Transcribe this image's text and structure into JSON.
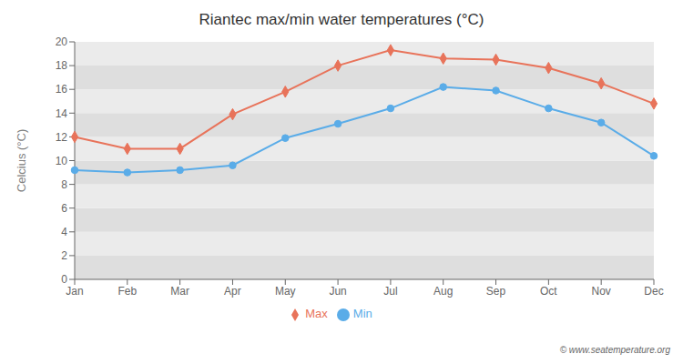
{
  "chart_data": {
    "type": "line",
    "title": "Riantec max/min water temperatures (°C)",
    "ylabel": "Celcius (°C)",
    "categories": [
      "Jan",
      "Feb",
      "Mar",
      "Apr",
      "May",
      "Jun",
      "Jul",
      "Aug",
      "Sep",
      "Oct",
      "Nov",
      "Dec"
    ],
    "series": [
      {
        "name": "Max",
        "color": "#e8735a",
        "marker": "diamond",
        "values": [
          12.0,
          11.0,
          11.0,
          13.9,
          15.8,
          18.0,
          19.3,
          18.6,
          18.5,
          17.8,
          16.5,
          14.8
        ]
      },
      {
        "name": "Min",
        "color": "#5aace8",
        "marker": "circle",
        "values": [
          9.2,
          9.0,
          9.2,
          9.6,
          11.9,
          13.1,
          14.4,
          16.2,
          15.9,
          14.4,
          13.2,
          10.4
        ]
      }
    ],
    "ylim": [
      0,
      20
    ],
    "yticks": [
      0,
      2,
      4,
      6,
      8,
      10,
      12,
      14,
      16,
      18,
      20
    ],
    "grid": false,
    "legend": "bottom",
    "annotations": [
      "© www.seatemperature.org"
    ]
  }
}
